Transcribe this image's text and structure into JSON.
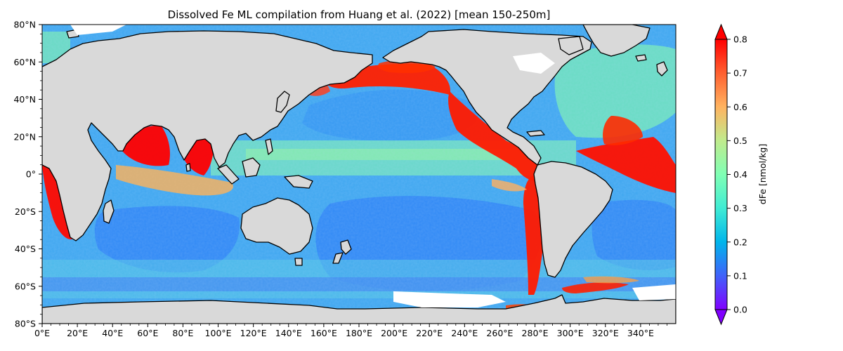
{
  "title": "Dissolved Fe ML compilation from Huang et al. (2022) [mean 150-250m]",
  "map": {
    "lon_range": [
      0,
      360
    ],
    "lat_range": [
      -80,
      80
    ],
    "land_color": "#d9d9d9",
    "missing_color": "#ffffff",
    "coastline_color": "#000000"
  },
  "x_ticks": [
    {
      "value": 0,
      "label": "0°E"
    },
    {
      "value": 20,
      "label": "20°E"
    },
    {
      "value": 40,
      "label": "40°E"
    },
    {
      "value": 60,
      "label": "60°E"
    },
    {
      "value": 80,
      "label": "80°E"
    },
    {
      "value": 100,
      "label": "100°E"
    },
    {
      "value": 120,
      "label": "120°E"
    },
    {
      "value": 140,
      "label": "140°E"
    },
    {
      "value": 160,
      "label": "160°E"
    },
    {
      "value": 180,
      "label": "180°E"
    },
    {
      "value": 200,
      "label": "200°E"
    },
    {
      "value": 220,
      "label": "220°E"
    },
    {
      "value": 240,
      "label": "240°E"
    },
    {
      "value": 260,
      "label": "260°E"
    },
    {
      "value": 280,
      "label": "280°E"
    },
    {
      "value": 300,
      "label": "300°E"
    },
    {
      "value": 320,
      "label": "320°E"
    },
    {
      "value": 340,
      "label": "340°E"
    }
  ],
  "y_ticks": [
    {
      "value": 80,
      "label": "80°N"
    },
    {
      "value": 60,
      "label": "60°N"
    },
    {
      "value": 40,
      "label": "40°N"
    },
    {
      "value": 20,
      "label": "20°N"
    },
    {
      "value": 0,
      "label": "0°"
    },
    {
      "value": -20,
      "label": "20°S"
    },
    {
      "value": -40,
      "label": "40°S"
    },
    {
      "value": -60,
      "label": "60°S"
    },
    {
      "value": -80,
      "label": "80°S"
    }
  ],
  "colorbar": {
    "label": "dFe [nmol/kg]",
    "min": 0,
    "max": 0.8,
    "extend": "both",
    "colormap": "rainbow",
    "stops": [
      "#8000ff",
      "#4062fa",
      "#00b5eb",
      "#40ecd4",
      "#80ffb4",
      "#c0eb8d",
      "#ffb360",
      "#ff6030",
      "#ff0000"
    ],
    "ticks": [
      {
        "value": 0.0,
        "label": "0.0"
      },
      {
        "value": 0.1,
        "label": "0.1"
      },
      {
        "value": 0.2,
        "label": "0.2"
      },
      {
        "value": 0.3,
        "label": "0.3"
      },
      {
        "value": 0.4,
        "label": "0.4"
      },
      {
        "value": 0.5,
        "label": "0.5"
      },
      {
        "value": 0.6,
        "label": "0.6"
      },
      {
        "value": 0.7,
        "label": "0.7"
      },
      {
        "value": 0.8,
        "label": "0.8"
      }
    ]
  }
}
